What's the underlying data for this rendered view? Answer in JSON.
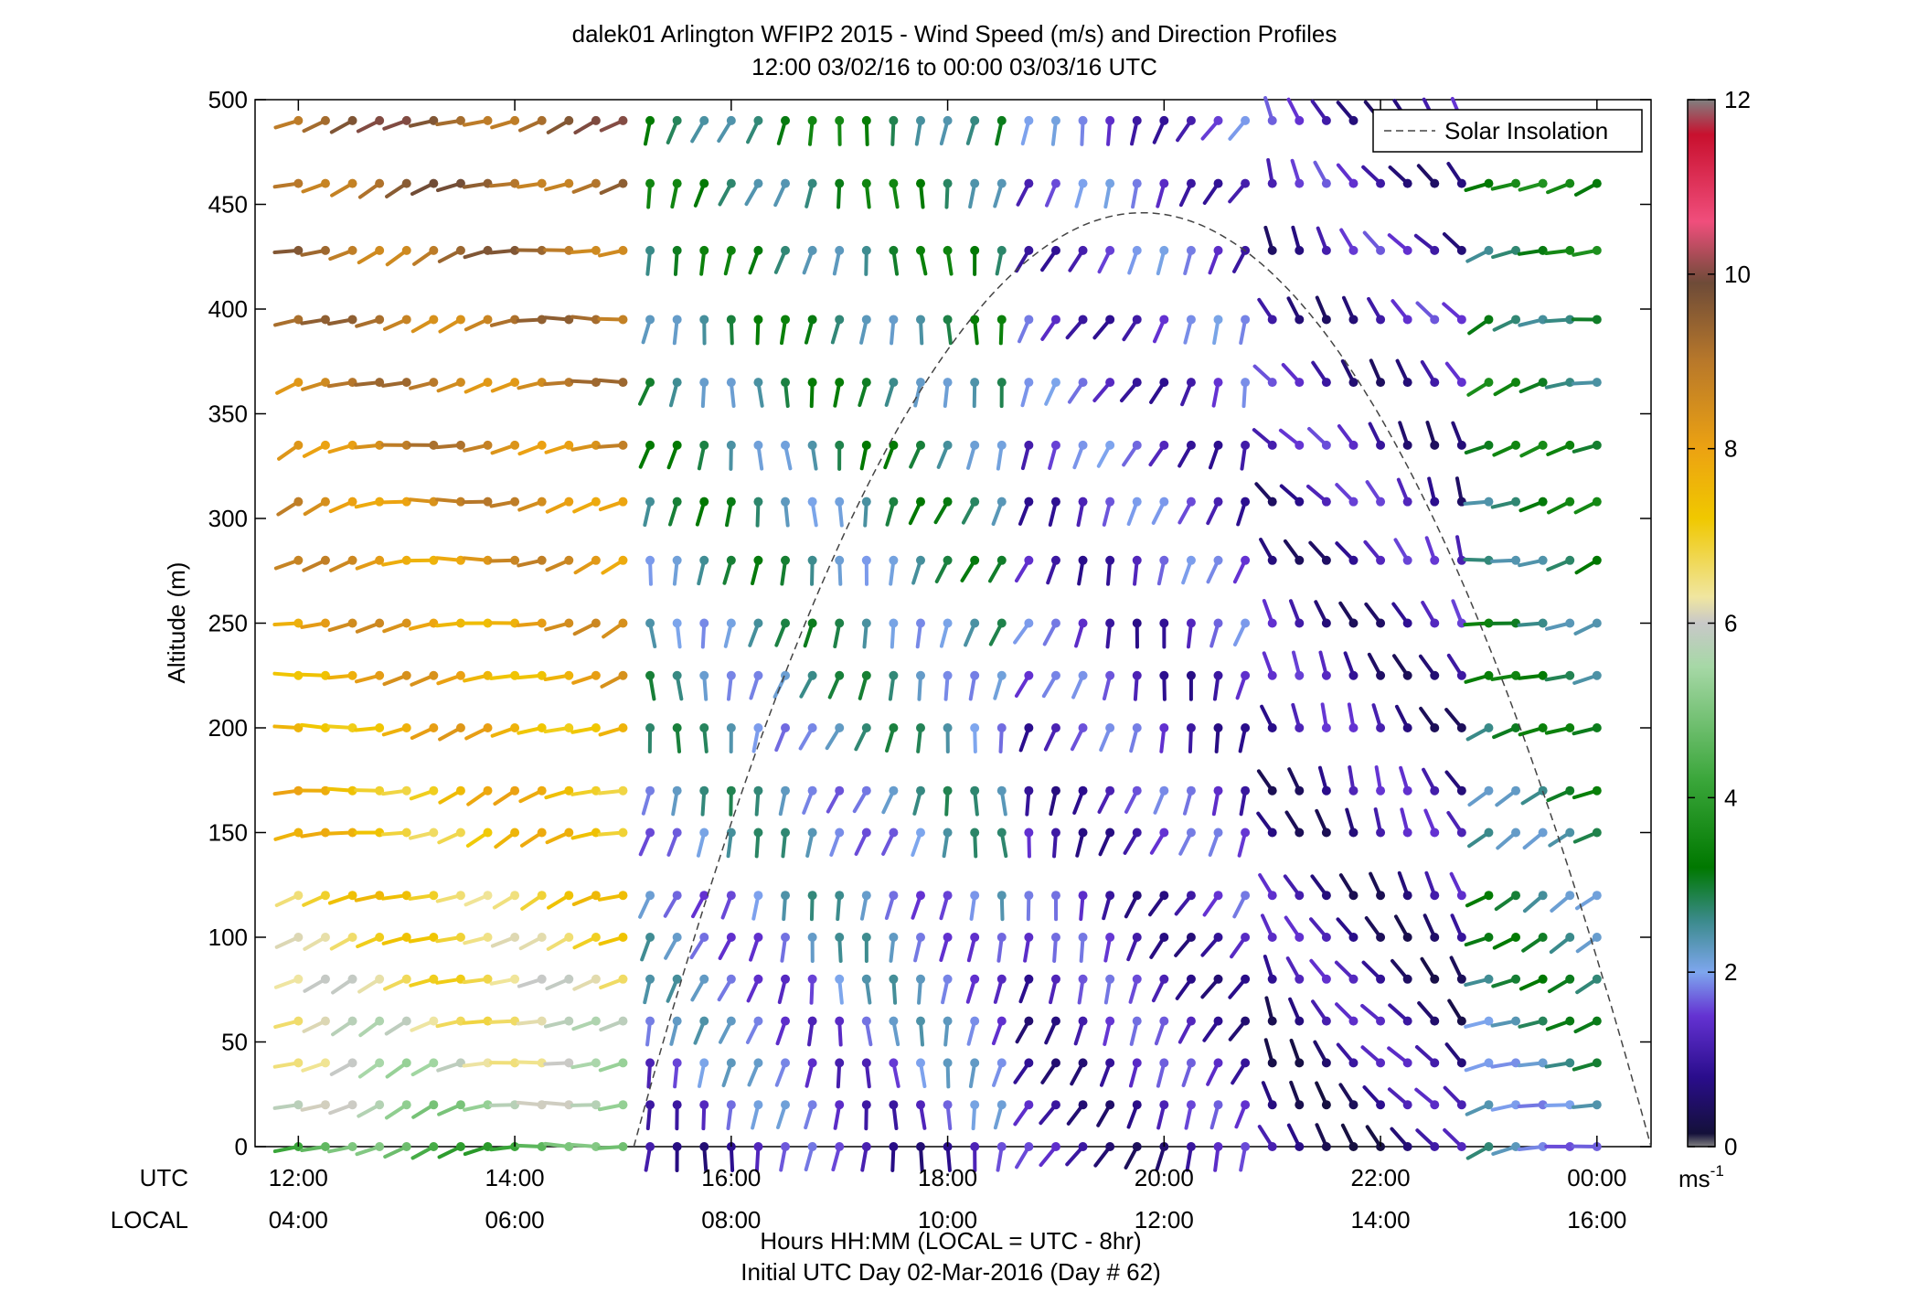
{
  "chart_data": {
    "type": "wind-barb-profile",
    "title": "dalek01 Arlington WFIP2 2015 - Wind Speed (m/s) and Direction Profiles",
    "subtitle": "12:00 03/02/16 to 00:00 03/03/16  UTC",
    "ylabel": "Altitude (m)",
    "xlabel": "Hours HH:MM  (LOCAL = UTC - 8hr)",
    "xlabel2": "Initial UTC Day 02-Mar-2016 (Day # 62)",
    "row_labels": {
      "utc": "UTC",
      "local": "LOCAL"
    },
    "x_range_hours": [
      11.6,
      24.5
    ],
    "x_ticks": [
      {
        "hour": 12,
        "utc": "12:00",
        "local": "04:00"
      },
      {
        "hour": 14,
        "utc": "14:00",
        "local": "06:00"
      },
      {
        "hour": 16,
        "utc": "16:00",
        "local": "08:00"
      },
      {
        "hour": 18,
        "utc": "18:00",
        "local": "10:00"
      },
      {
        "hour": 20,
        "utc": "20:00",
        "local": "12:00"
      },
      {
        "hour": 22,
        "utc": "22:00",
        "local": "14:00"
      },
      {
        "hour": 24,
        "utc": "00:00",
        "local": "16:00"
      }
    ],
    "ylim": [
      0,
      500
    ],
    "y_ticks": [
      0,
      50,
      100,
      150,
      200,
      250,
      300,
      350,
      400,
      450,
      500
    ],
    "altitudes_m": [
      0,
      20,
      40,
      60,
      80,
      100,
      120,
      150,
      170,
      200,
      225,
      250,
      280,
      308,
      335,
      365,
      395,
      428,
      460,
      490
    ],
    "time_step_hours": 0.25,
    "time_start_hour": 12.0,
    "time_end_hour": 24.0,
    "colorbar": {
      "label": "ms",
      "label_sup": "-1",
      "range": [
        0,
        12
      ],
      "ticks": [
        0,
        2,
        4,
        6,
        8,
        10,
        12
      ],
      "stops": [
        {
          "v": 0.0,
          "c": "#808080"
        },
        {
          "v": 0.15,
          "c": "#14103a"
        },
        {
          "v": 0.8,
          "c": "#2a0d8c"
        },
        {
          "v": 1.5,
          "c": "#6432d2"
        },
        {
          "v": 2.0,
          "c": "#7ea6ee"
        },
        {
          "v": 2.6,
          "c": "#3a8a8a"
        },
        {
          "v": 3.2,
          "c": "#007800"
        },
        {
          "v": 4.2,
          "c": "#3aa63a"
        },
        {
          "v": 5.5,
          "c": "#a6d8a6"
        },
        {
          "v": 6.0,
          "c": "#c8c8c8"
        },
        {
          "v": 6.3,
          "c": "#f0e6a0"
        },
        {
          "v": 7.2,
          "c": "#f0c800"
        },
        {
          "v": 8.0,
          "c": "#eca212"
        },
        {
          "v": 9.0,
          "c": "#b8782a"
        },
        {
          "v": 9.9,
          "c": "#6e4b38"
        },
        {
          "v": 10.6,
          "c": "#f04e7c"
        },
        {
          "v": 11.6,
          "c": "#c8102e"
        },
        {
          "v": 12.0,
          "c": "#808080"
        }
      ]
    },
    "legend": {
      "position": "top-right",
      "entries": [
        {
          "label": "Solar Insolation",
          "style": "dashed",
          "color": "#555555"
        }
      ]
    },
    "solar_insolation": {
      "sunrise_hour": 15.1,
      "sunset_hour": 24.5,
      "peak_altitude_equiv_m": 446
    },
    "wind_model": {
      "description": "direction in degrees (from), speed in m/s, per time/altitude",
      "regimes": [
        {
          "from_hour": 12.0,
          "to_hour": 15.2,
          "dir_deg": 255,
          "speed_surface": 4.5,
          "speed_aloft": 9.5
        },
        {
          "from_hour": 15.2,
          "to_hour": 18.6,
          "dir_deg": 190,
          "speed_surface": 1.2,
          "speed_aloft": 3.0
        },
        {
          "from_hour": 18.6,
          "to_hour": 21.0,
          "dir_deg": 200,
          "speed_surface": 1.0,
          "speed_aloft": 1.5
        },
        {
          "from_hour": 21.0,
          "to_hour": 22.8,
          "dir_deg": 330,
          "speed_surface": 0.7,
          "speed_aloft": 1.1
        },
        {
          "from_hour": 22.8,
          "to_hour": 24.0,
          "dir_deg": 250,
          "speed_surface": 2.2,
          "speed_aloft": 3.2
        }
      ]
    }
  }
}
